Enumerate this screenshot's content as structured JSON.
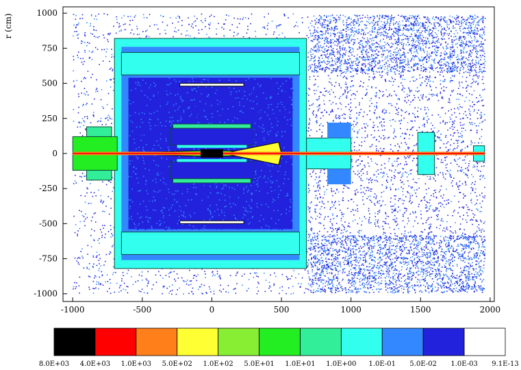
{
  "chart_data": {
    "type": "heatmap",
    "title": "",
    "xlabel": "",
    "ylabel": "r (cm)",
    "xlim": [
      -1070,
      2030
    ],
    "ylim": [
      -1055,
      1045
    ],
    "x_ticks": [
      -1000,
      -500,
      0,
      500,
      1000,
      1500,
      2000
    ],
    "y_ticks": [
      1000,
      750,
      500,
      250,
      0,
      -250,
      -500,
      -750,
      -1000
    ],
    "x_tick_labels": [
      "-1000",
      "-500",
      "0",
      "500",
      "1000",
      "1500",
      "2000"
    ],
    "y_tick_labels": [
      "1000",
      "750",
      "500",
      "250",
      "0",
      "-250",
      "-500",
      "-750",
      "-1000"
    ],
    "grid": false,
    "colorbar": {
      "placement": "bottom",
      "colors": [
        "#000000",
        "#ff0000",
        "#ff7f1a",
        "#ffff33",
        "#88ee33",
        "#22ee22",
        "#33ee99",
        "#33ffee",
        "#3388ff",
        "#2222dd",
        "#ffffff"
      ],
      "labels": [
        "8.0E+03",
        "4.0E+03",
        "1.0E+03",
        "5.0E+02",
        "1.0E+02",
        "5.0E+01",
        "1.0E+01",
        "1.0E+00",
        "1.0E-01",
        "5.0E-02",
        "1.0E-03",
        "9.1E-13"
      ]
    }
  }
}
